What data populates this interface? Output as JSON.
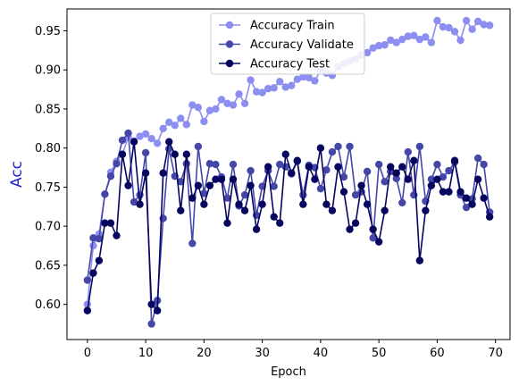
{
  "chart_data": {
    "type": "line",
    "title": "",
    "xlabel": "Epoch",
    "ylabel": "Acc",
    "xlim": [
      -3.5,
      72.5
    ],
    "ylim": [
      0.555,
      0.978
    ],
    "xticks": [
      0,
      10,
      20,
      30,
      40,
      50,
      60,
      70
    ],
    "yticks": [
      0.6,
      0.65,
      0.7,
      0.75,
      0.8,
      0.85,
      0.9,
      0.95
    ],
    "grid": false,
    "legend": "top-center",
    "x": [
      0,
      1,
      2,
      3,
      4,
      5,
      6,
      7,
      8,
      9,
      10,
      11,
      12,
      13,
      14,
      15,
      16,
      17,
      18,
      19,
      20,
      21,
      22,
      23,
      24,
      25,
      26,
      27,
      28,
      29,
      30,
      31,
      32,
      33,
      34,
      35,
      36,
      37,
      38,
      39,
      40,
      41,
      42,
      43,
      44,
      45,
      46,
      47,
      48,
      49,
      50,
      51,
      52,
      53,
      54,
      55,
      56,
      57,
      58,
      59,
      60,
      61,
      62,
      63,
      64,
      65,
      66,
      67,
      68,
      69
    ],
    "series": [
      {
        "name": "Accuracy Train",
        "color": "#8c8ff0",
        "values": [
          0.6,
          0.675,
          0.69,
          0.741,
          0.769,
          0.783,
          0.792,
          0.814,
          0.809,
          0.815,
          0.818,
          0.812,
          0.806,
          0.825,
          0.833,
          0.829,
          0.838,
          0.83,
          0.855,
          0.852,
          0.834,
          0.848,
          0.85,
          0.862,
          0.857,
          0.855,
          0.869,
          0.857,
          0.887,
          0.872,
          0.871,
          0.876,
          0.877,
          0.885,
          0.878,
          0.88,
          0.888,
          0.891,
          0.89,
          0.886,
          0.899,
          0.896,
          0.893,
          0.904,
          0.908,
          0.911,
          0.914,
          0.919,
          0.922,
          0.928,
          0.931,
          0.932,
          0.938,
          0.935,
          0.939,
          0.943,
          0.944,
          0.939,
          0.942,
          0.935,
          0.963,
          0.955,
          0.954,
          0.949,
          0.938,
          0.963,
          0.952,
          0.962,
          0.958,
          0.957
        ]
      },
      {
        "name": "Accuracy Validate",
        "color": "#4447a8",
        "values": [
          0.631,
          0.685,
          0.684,
          0.741,
          0.764,
          0.78,
          0.81,
          0.819,
          0.731,
          0.74,
          0.794,
          0.575,
          0.605,
          0.71,
          0.799,
          0.764,
          0.757,
          0.78,
          0.678,
          0.802,
          0.742,
          0.78,
          0.779,
          0.763,
          0.736,
          0.779,
          0.726,
          0.74,
          0.771,
          0.714,
          0.751,
          0.771,
          0.751,
          0.779,
          0.776,
          0.767,
          0.783,
          0.74,
          0.778,
          0.775,
          0.748,
          0.772,
          0.795,
          0.802,
          0.763,
          0.802,
          0.74,
          0.744,
          0.77,
          0.685,
          0.779,
          0.757,
          0.77,
          0.761,
          0.73,
          0.795,
          0.74,
          0.802,
          0.732,
          0.76,
          0.779,
          0.763,
          0.771,
          0.782,
          0.74,
          0.724,
          0.735,
          0.787,
          0.779,
          0.718
        ]
      },
      {
        "name": "Accuracy Test",
        "color": "#06065e",
        "values": [
          0.592,
          0.64,
          0.656,
          0.704,
          0.704,
          0.688,
          0.792,
          0.752,
          0.808,
          0.728,
          0.768,
          0.6,
          0.592,
          0.768,
          0.808,
          0.792,
          0.72,
          0.792,
          0.736,
          0.752,
          0.728,
          0.752,
          0.76,
          0.76,
          0.704,
          0.76,
          0.728,
          0.72,
          0.752,
          0.696,
          0.728,
          0.776,
          0.712,
          0.704,
          0.792,
          0.768,
          0.784,
          0.728,
          0.776,
          0.76,
          0.8,
          0.728,
          0.72,
          0.776,
          0.744,
          0.696,
          0.704,
          0.752,
          0.728,
          0.696,
          0.68,
          0.72,
          0.776,
          0.768,
          0.776,
          0.76,
          0.784,
          0.656,
          0.72,
          0.752,
          0.76,
          0.744,
          0.744,
          0.784,
          0.744,
          0.736,
          0.728,
          0.76,
          0.736,
          0.712
        ]
      }
    ]
  }
}
